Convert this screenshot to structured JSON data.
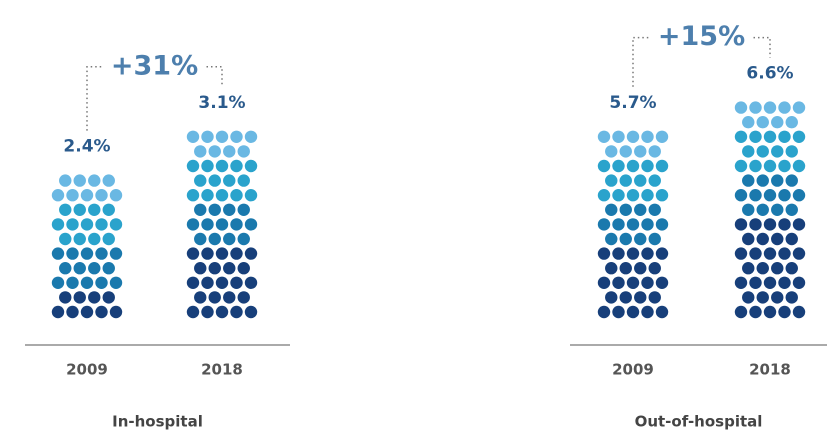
{
  "chart_data": [
    {
      "type": "pictogram",
      "xlabel": "In-hospital",
      "annotation": "+31%",
      "categories": [
        "2009",
        "2018"
      ],
      "values": [
        2.4,
        3.1
      ],
      "value_labels": [
        "2.4%",
        "3.1%"
      ],
      "ylim": [
        0,
        3.6
      ],
      "colors": [
        "#6ab8e3",
        "#2aa3cc",
        "#1a79ad",
        "#173f7a"
      ]
    },
    {
      "type": "pictogram",
      "xlabel": "Out-of-hospital",
      "annotation": "+15%",
      "categories": [
        "2009",
        "2018"
      ],
      "values": [
        5.7,
        6.6
      ],
      "value_labels": [
        "5.7%",
        "6.6%"
      ],
      "ylim": [
        0,
        6.6
      ],
      "colors": [
        "#6ab8e3",
        "#2aa3cc",
        "#1a79ad",
        "#173f7a"
      ]
    }
  ]
}
